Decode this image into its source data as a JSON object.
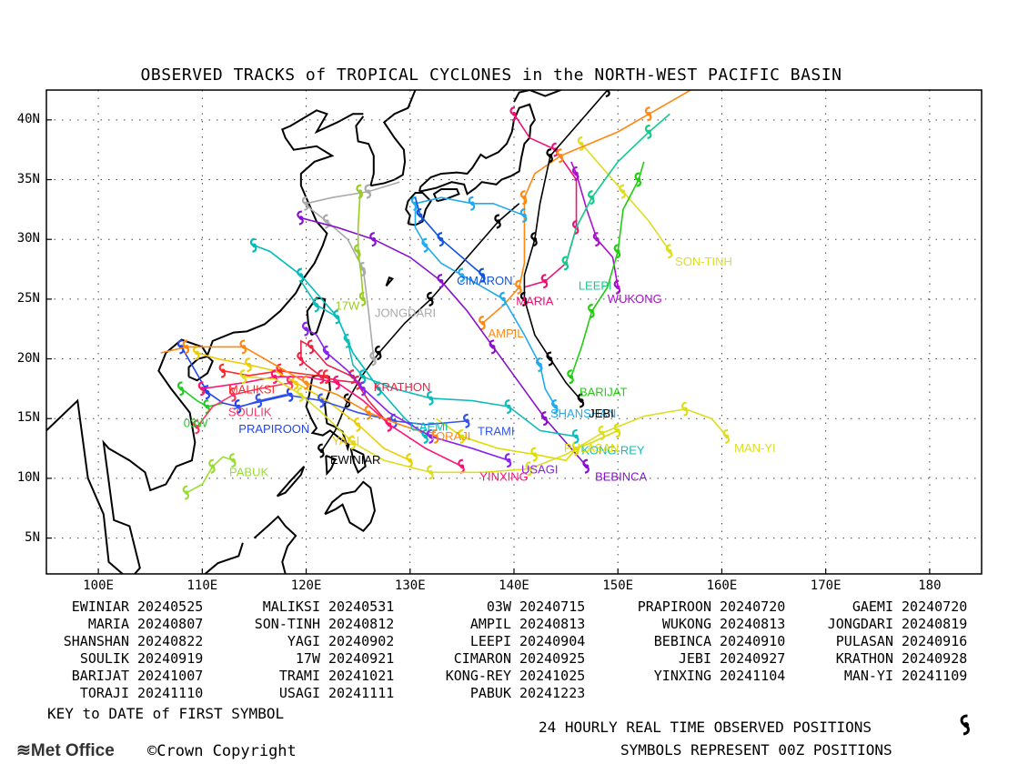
{
  "title": "OBSERVED TRACKS of TROPICAL CYCLONES in the NORTH-WEST PACIFIC BASIN",
  "axes": {
    "lon_ticks": [
      "100E",
      "110E",
      "120E",
      "130E",
      "140E",
      "150E",
      "160E",
      "170E",
      "180"
    ],
    "lat_ticks": [
      "40N",
      "35N",
      "30N",
      "25N",
      "20N",
      "15N",
      "10N",
      "5N"
    ],
    "lon_range": [
      95,
      185
    ],
    "lat_range": [
      2,
      42.5
    ]
  },
  "storms": [
    {
      "name": "EWINIAR",
      "date": "20240525",
      "color": "#000000",
      "track": [
        [
          121.5,
          12.3
        ],
        [
          122.8,
          14.0
        ],
        [
          124.0,
          16.5
        ],
        [
          125.3,
          18.5
        ],
        [
          127.0,
          20.5
        ],
        [
          129.5,
          23.0
        ],
        [
          132.0,
          25.0
        ],
        [
          135.0,
          28.0
        ],
        [
          138.5,
          31.5
        ],
        [
          140.5,
          33.0
        ]
      ]
    },
    {
      "name": "MALIKSI",
      "date": "20240531",
      "color": "#ff2a2a",
      "track": [
        [
          122.0,
          18.5
        ],
        [
          120.0,
          18.7
        ],
        [
          117.5,
          19.0
        ],
        [
          114.5,
          18.6
        ],
        [
          112.0,
          19.0
        ]
      ]
    },
    {
      "name": "03W",
      "date": "20240715",
      "color": "#22cc22",
      "track": [
        [
          108.0,
          17.5
        ],
        [
          109.5,
          16.5
        ],
        [
          110.5,
          16.0
        ],
        [
          112.0,
          16.3
        ]
      ]
    },
    {
      "name": "PRAPIROON",
      "date": "20240720",
      "color": "#2244ee",
      "track": [
        [
          118.5,
          17.0
        ],
        [
          116.0,
          16.5
        ],
        [
          113.5,
          16.0
        ],
        [
          112.0,
          16.3
        ],
        [
          110.5,
          17.2
        ],
        [
          109.0,
          19.5
        ],
        [
          108.0,
          21.0
        ]
      ]
    },
    {
      "name": "GAEMI",
      "date": "20240720",
      "color": "#00bbbb",
      "track": [
        [
          131.5,
          13.5
        ],
        [
          129.5,
          15.0
        ],
        [
          127.0,
          17.5
        ],
        [
          124.5,
          20.5
        ],
        [
          123.0,
          23.5
        ],
        [
          121.5,
          25.0
        ],
        [
          119.5,
          27.0
        ],
        [
          116.5,
          29.0
        ],
        [
          115.0,
          29.5
        ]
      ]
    },
    {
      "name": "MARIA",
      "date": "20240807",
      "color": "#ee1177",
      "track": [
        [
          140.0,
          40.5
        ],
        [
          141.5,
          38.5
        ],
        [
          144.0,
          37.5
        ],
        [
          146.0,
          35.0
        ],
        [
          146.0,
          31.0
        ],
        [
          145.0,
          28.0
        ],
        [
          143.0,
          26.5
        ],
        [
          141.0,
          26.0
        ]
      ]
    },
    {
      "name": "SON-TINH",
      "date": "20240812",
      "color": "#dddd22",
      "track": [
        [
          155.0,
          29.0
        ],
        [
          153.0,
          31.5
        ],
        [
          150.5,
          34.0
        ],
        [
          148.0,
          36.5
        ],
        [
          146.5,
          38.0
        ]
      ]
    },
    {
      "name": "AMPIL",
      "date": "20240813",
      "color": "#ff8811",
      "track": [
        [
          137.0,
          23.0
        ],
        [
          139.0,
          24.5
        ],
        [
          140.5,
          26.0
        ],
        [
          141.0,
          28.0
        ],
        [
          141.0,
          33.5
        ],
        [
          142.0,
          35.5
        ],
        [
          144.5,
          37.0
        ],
        [
          150.0,
          39.0
        ],
        [
          153.0,
          40.5
        ],
        [
          158.0,
          43.0
        ]
      ]
    },
    {
      "name": "WUKONG",
      "date": "20240813",
      "color": "#aa11cc",
      "track": [
        [
          150.0,
          26.0
        ],
        [
          149.5,
          28.5
        ],
        [
          148.0,
          30.0
        ],
        [
          147.0,
          32.5
        ],
        [
          146.0,
          35.5
        ],
        [
          145.5,
          36.5
        ]
      ]
    },
    {
      "name": "JONGDARI",
      "date": "20240819",
      "color": "#aaaaaa",
      "track": [
        [
          126.5,
          20.0
        ],
        [
          126.0,
          24.0
        ],
        [
          125.5,
          27.5
        ],
        [
          124.0,
          30.0
        ],
        [
          122.0,
          31.5
        ],
        [
          120.5,
          32.5
        ],
        [
          120.0,
          33.0
        ],
        [
          122.5,
          33.5
        ],
        [
          126.0,
          34.0
        ],
        [
          129.0,
          34.8
        ]
      ]
    },
    {
      "name": "SHANSHAN",
      "date": "20240822",
      "color": "#22aaee",
      "track": [
        [
          144.0,
          16.0
        ],
        [
          143.0,
          17.5
        ],
        [
          142.5,
          19.5
        ],
        [
          141.0,
          22.0
        ],
        [
          139.0,
          25.0
        ],
        [
          137.0,
          26.0
        ],
        [
          135.0,
          27.0
        ],
        [
          133.0,
          28.0
        ],
        [
          131.5,
          29.5
        ],
        [
          130.5,
          31.0
        ],
        [
          130.5,
          33.0
        ],
        [
          133.0,
          33.5
        ],
        [
          136.0,
          33.0
        ],
        [
          138.0,
          33.0
        ],
        [
          141.0,
          32.0
        ]
      ]
    },
    {
      "name": "YAGI",
      "date": "20240902",
      "color": "#eecc00",
      "track": [
        [
          130.0,
          11.5
        ],
        [
          127.5,
          12.5
        ],
        [
          125.0,
          14.5
        ],
        [
          122.0,
          16.5
        ],
        [
          119.0,
          18.0
        ],
        [
          117.0,
          19.0
        ],
        [
          114.5,
          19.5
        ],
        [
          111.5,
          20.0
        ],
        [
          109.5,
          20.5
        ]
      ]
    },
    {
      "name": "LEEPI",
      "date": "20240904",
      "color": "#11cc88",
      "track": [
        [
          145.0,
          28.0
        ],
        [
          146.0,
          31.0
        ],
        [
          147.5,
          33.5
        ],
        [
          150.0,
          36.5
        ],
        [
          153.0,
          39.0
        ],
        [
          155.0,
          40.5
        ]
      ]
    },
    {
      "name": "BEBINCA",
      "date": "20240910",
      "color": "#8811cc",
      "track": [
        [
          147.0,
          11.0
        ],
        [
          145.0,
          13.0
        ],
        [
          143.0,
          15.0
        ],
        [
          140.5,
          18.0
        ],
        [
          138.0,
          21.0
        ],
        [
          135.5,
          24.0
        ],
        [
          133.0,
          26.5
        ],
        [
          130.0,
          28.5
        ],
        [
          126.5,
          30.0
        ],
        [
          123.0,
          31.0
        ],
        [
          119.5,
          31.8
        ]
      ]
    },
    {
      "name": "PULASAN",
      "date": "20240916",
      "color": "#dddd00",
      "track": [
        [
          150.0,
          14.0
        ],
        [
          147.5,
          13.0
        ],
        [
          146.0,
          12.5
        ],
        [
          145.0,
          11.5
        ],
        [
          142.0,
          12.0
        ],
        [
          138.5,
          12.5
        ],
        [
          135.0,
          13.5
        ],
        [
          132.5,
          15.0
        ]
      ]
    },
    {
      "name": "SOULIK",
      "date": "20240919",
      "color": "#ff3366",
      "track": [
        [
          118.5,
          18.0
        ],
        [
          115.5,
          17.5
        ],
        [
          113.0,
          17.0
        ],
        [
          111.0,
          16.0
        ],
        [
          109.5,
          14.3
        ]
      ]
    },
    {
      "name": "17W",
      "date": "20240921",
      "color": "#99cc22",
      "track": [
        [
          125.5,
          25.0
        ],
        [
          125.3,
          27.0
        ],
        [
          125.0,
          29.0
        ],
        [
          125.0,
          31.0
        ],
        [
          125.2,
          34.0
        ]
      ]
    },
    {
      "name": "CIMARON",
      "date": "20240925",
      "color": "#1155dd",
      "track": [
        [
          137.0,
          27.0
        ],
        [
          135.0,
          28.5
        ],
        [
          133.0,
          30.0
        ],
        [
          132.0,
          31.0
        ],
        [
          131.0,
          32.0
        ],
        [
          130.5,
          33.5
        ]
      ]
    },
    {
      "name": "JEBI",
      "date": "20240927",
      "color": "#000000",
      "track": [
        [
          146.5,
          16.5
        ],
        [
          145.0,
          18.0
        ],
        [
          143.5,
          20.0
        ],
        [
          142.0,
          22.0
        ],
        [
          141.0,
          25.0
        ],
        [
          141.0,
          27.0
        ],
        [
          142.0,
          30.0
        ],
        [
          142.5,
          33.0
        ],
        [
          143.5,
          37.0
        ],
        [
          146.0,
          39.5
        ],
        [
          149.0,
          42.5
        ]
      ]
    },
    {
      "name": "KRATHON",
      "date": "20240928",
      "color": "#ee2244",
      "track": [
        [
          128.0,
          14.5
        ],
        [
          126.0,
          16.5
        ],
        [
          124.5,
          18.5
        ],
        [
          122.0,
          19.5
        ],
        [
          120.5,
          21.0
        ],
        [
          119.5,
          21.5
        ],
        [
          119.5,
          20.0
        ],
        [
          120.0,
          19.5
        ],
        [
          121.5,
          18.5
        ],
        [
          123.0,
          18.2
        ],
        [
          125.0,
          18.0
        ]
      ]
    },
    {
      "name": "BARIJAT",
      "date": "20241007",
      "color": "#22cc11",
      "track": [
        [
          145.5,
          18.5
        ],
        [
          146.5,
          21.0
        ],
        [
          147.5,
          24.0
        ],
        [
          149.0,
          26.0
        ],
        [
          150.0,
          29.0
        ],
        [
          150.5,
          32.5
        ],
        [
          152.0,
          35.0
        ],
        [
          152.5,
          36.5
        ]
      ]
    },
    {
      "name": "TRAMI",
      "date": "20241021",
      "color": "#3355ee",
      "track": [
        [
          135.5,
          14.8
        ],
        [
          131.5,
          14.5
        ],
        [
          128.5,
          14.8
        ],
        [
          125.0,
          15.5
        ],
        [
          121.5,
          16.5
        ],
        [
          118.0,
          17.0
        ],
        [
          115.5,
          16.5
        ],
        [
          113.0,
          15.8
        ]
      ]
    },
    {
      "name": "KONG-REY",
      "date": "20241025",
      "color": "#11bbbb",
      "track": [
        [
          146.0,
          13.5
        ],
        [
          142.5,
          14.0
        ],
        [
          139.5,
          16.0
        ],
        [
          136.0,
          16.5
        ],
        [
          132.0,
          16.7
        ],
        [
          128.5,
          17.5
        ],
        [
          125.5,
          18.5
        ],
        [
          124.5,
          19.5
        ],
        [
          124.0,
          21.5
        ],
        [
          123.0,
          23.5
        ],
        [
          121.0,
          24.5
        ],
        [
          119.5,
          26.5
        ]
      ]
    },
    {
      "name": "YINXING",
      "date": "20241104",
      "color": "#ff1177",
      "track": [
        [
          135.0,
          11.0
        ],
        [
          131.5,
          12.5
        ],
        [
          128.0,
          14.5
        ],
        [
          125.5,
          16.5
        ],
        [
          123.0,
          18.0
        ],
        [
          120.0,
          18.5
        ],
        [
          117.0,
          18.5
        ],
        [
          114.0,
          18.0
        ],
        [
          110.0,
          17.5
        ]
      ]
    },
    {
      "name": "MAN-YI",
      "date": "20241109",
      "color": "#dddd22",
      "track": [
        [
          160.5,
          13.5
        ],
        [
          159.0,
          15.0
        ],
        [
          156.5,
          15.8
        ],
        [
          152.5,
          15.2
        ],
        [
          148.5,
          13.8
        ],
        [
          145.0,
          12.0
        ],
        [
          141.5,
          10.8
        ],
        [
          137.0,
          10.5
        ],
        [
          132.0,
          10.5
        ],
        [
          127.5,
          11.5
        ],
        [
          124.5,
          13.0
        ],
        [
          121.5,
          15.5
        ],
        [
          119.5,
          17.0
        ],
        [
          117.0,
          18.3
        ],
        [
          114.0,
          18.5
        ]
      ]
    },
    {
      "name": "TORAJI",
      "date": "20241110",
      "color": "#ff8811",
      "track": [
        [
          132.5,
          13.5
        ],
        [
          129.0,
          14.5
        ],
        [
          126.0,
          15.5
        ],
        [
          123.0,
          17.0
        ],
        [
          120.0,
          18.0
        ],
        [
          117.0,
          19.5
        ],
        [
          114.0,
          21.0
        ],
        [
          111.0,
          21.0
        ],
        [
          108.5,
          21.0
        ],
        [
          106.0,
          20.5
        ]
      ]
    },
    {
      "name": "USAGI",
      "date": "20241111",
      "color": "#8822ee",
      "track": [
        [
          139.5,
          11.5
        ],
        [
          136.0,
          12.5
        ],
        [
          132.0,
          13.5
        ],
        [
          128.0,
          15.5
        ],
        [
          125.5,
          17.5
        ],
        [
          124.0,
          19.0
        ],
        [
          122.0,
          20.5
        ],
        [
          121.0,
          22.0
        ],
        [
          120.0,
          22.5
        ]
      ]
    },
    {
      "name": "PABUK",
      "date": "20241223",
      "color": "#99dd33",
      "track": [
        [
          108.5,
          8.8
        ],
        [
          110.0,
          9.5
        ],
        [
          111.0,
          11.0
        ],
        [
          112.0,
          11.8
        ],
        [
          113.0,
          11.5
        ]
      ]
    }
  ],
  "map_labels": [
    {
      "text": "KRATHON",
      "color": "#ee2244",
      "pos": [
        126.5,
        17.3
      ]
    },
    {
      "text": "MALIKSI",
      "color": "#ff2a2a",
      "pos": [
        112.5,
        17.1
      ]
    },
    {
      "text": "SOULIK",
      "color": "#ff3366",
      "pos": [
        112.5,
        15.2
      ]
    },
    {
      "text": "03W",
      "color": "#22cc22",
      "pos": [
        108.2,
        14.3
      ]
    },
    {
      "text": "PRAPIROON",
      "color": "#2244ee",
      "pos": [
        113.5,
        13.8
      ]
    },
    {
      "text": "YAGI",
      "color": "#eecc00",
      "pos": [
        122.5,
        12.8
      ]
    },
    {
      "text": "GAEMI",
      "color": "#00bbbb",
      "pos": [
        130.0,
        14.0
      ]
    },
    {
      "text": "TORAJI",
      "color": "#ff8811",
      "pos": [
        131.8,
        13.2
      ]
    },
    {
      "text": "TRAMI",
      "color": "#3355ee",
      "pos": [
        136.5,
        13.6
      ]
    },
    {
      "text": "EWINIAR",
      "color": "#000000",
      "pos": [
        122.3,
        11.2
      ]
    },
    {
      "text": "PABUK",
      "color": "#99dd33",
      "pos": [
        112.6,
        10.2
      ]
    },
    {
      "text": "YINXING",
      "color": "#ff1177",
      "pos": [
        136.7,
        9.8
      ]
    },
    {
      "text": "USAGI",
      "color": "#8822ee",
      "pos": [
        140.7,
        10.4
      ]
    },
    {
      "text": "BEBINCA",
      "color": "#8811cc",
      "pos": [
        147.8,
        9.8
      ]
    },
    {
      "text": "KONG-REY",
      "color": "#11bbbb",
      "pos": [
        146.5,
        12.0
      ]
    },
    {
      "text": "PULASAN",
      "color": "#dddd00",
      "pos": [
        144.8,
        12.2
      ]
    },
    {
      "text": "MAN-YI",
      "color": "#dddd22",
      "pos": [
        161.2,
        12.2
      ]
    },
    {
      "text": "SHANSHAN",
      "color": "#22aaee",
      "pos": [
        143.5,
        15.1
      ]
    },
    {
      "text": "JEBI",
      "color": "#000000",
      "pos": [
        147.2,
        15.1
      ]
    },
    {
      "text": "BARIJAT",
      "color": "#22cc11",
      "pos": [
        146.3,
        16.9
      ]
    },
    {
      "text": "AMPIL",
      "color": "#ff8811",
      "pos": [
        137.5,
        21.8
      ]
    },
    {
      "text": "MARIA",
      "color": "#ee1177",
      "pos": [
        140.2,
        24.5
      ]
    },
    {
      "text": "CIMARON",
      "color": "#1155dd",
      "pos": [
        134.5,
        26.2
      ]
    },
    {
      "text": "LEEPI",
      "color": "#11cc88",
      "pos": [
        146.2,
        25.8
      ]
    },
    {
      "text": "WUKONG",
      "color": "#aa11cc",
      "pos": [
        149.0,
        24.7
      ]
    },
    {
      "text": "SON-TINH",
      "color": "#dddd22",
      "pos": [
        155.5,
        27.8
      ]
    },
    {
      "text": "17W",
      "color": "#99cc22",
      "pos": [
        122.8,
        24.1
      ]
    },
    {
      "text": "JONGDARI",
      "color": "#aaaaaa",
      "pos": [
        126.6,
        23.5
      ]
    }
  ],
  "legend_key": "KEY to DATE of FIRST SYMBOL",
  "footer_positions": "24 HOURLY REAL TIME OBSERVED POSITIONS",
  "footer_symbols": "SYMBOLS REPRESENT 00Z POSITIONS",
  "logo_text": "Met Office",
  "copyright": "Crown Copyright"
}
